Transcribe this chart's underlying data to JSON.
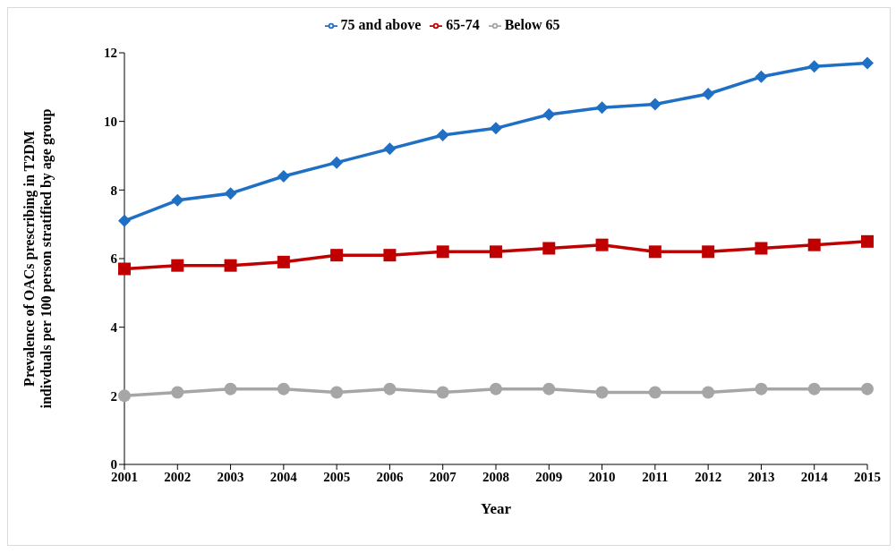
{
  "chart_data": {
    "type": "line",
    "xlabel": "Year",
    "ylabel": "Prevalence of OACs prescribing  in T2DM\nindivduals per 100 person stratified by age group",
    "categories": [
      "2001",
      "2002",
      "2003",
      "2004",
      "2005",
      "2006",
      "2007",
      "2008",
      "2009",
      "2010",
      "2011",
      "2012",
      "2013",
      "2014",
      "2015"
    ],
    "series": [
      {
        "name": "75 and above",
        "color": "#1f6fc5",
        "marker": "diamond",
        "values": [
          7.1,
          7.7,
          7.9,
          8.4,
          8.8,
          9.2,
          9.6,
          9.8,
          10.2,
          10.4,
          10.5,
          10.8,
          11.3,
          11.6,
          11.7
        ]
      },
      {
        "name": "65-74",
        "color": "#c00000",
        "marker": "square",
        "values": [
          5.7,
          5.8,
          5.8,
          5.9,
          6.1,
          6.1,
          6.2,
          6.2,
          6.3,
          6.4,
          6.2,
          6.2,
          6.3,
          6.4,
          6.5
        ]
      },
      {
        "name": "Below 65",
        "color": "#a6a6a6",
        "marker": "circle",
        "values": [
          2.0,
          2.1,
          2.2,
          2.2,
          2.1,
          2.2,
          2.1,
          2.2,
          2.2,
          2.1,
          2.1,
          2.1,
          2.2,
          2.2,
          2.2
        ]
      }
    ],
    "ylim": [
      0,
      12
    ],
    "yticks": [
      0,
      2,
      4,
      6,
      8,
      10,
      12
    ],
    "grid": false,
    "legend": "top",
    "line_style": "solid"
  }
}
